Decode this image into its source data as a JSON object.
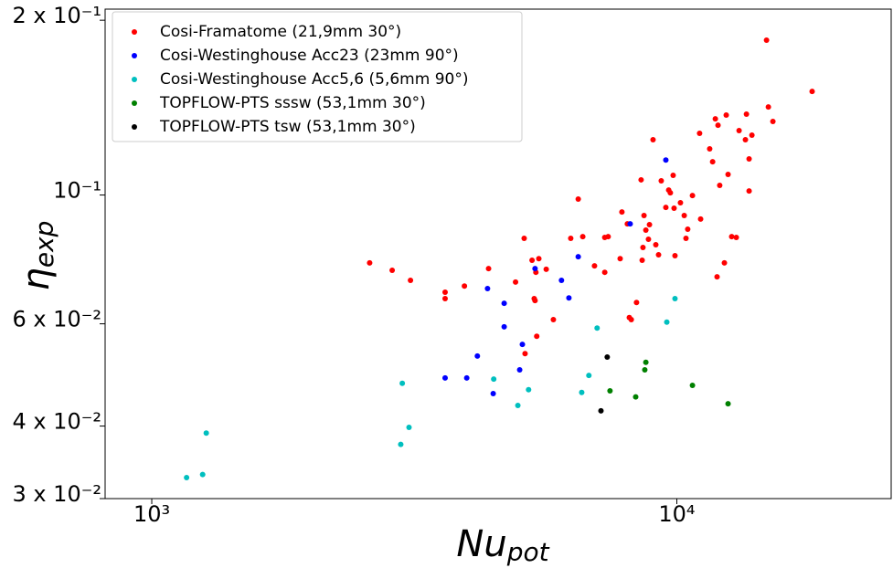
{
  "chart_data": {
    "type": "scatter",
    "xlabel": {
      "text": "Nu",
      "subscript": "pot"
    },
    "ylabel": {
      "text": "η",
      "subscript": "exp"
    },
    "xscale": "log",
    "yscale": "log",
    "xlim": [
      815,
      25600
    ],
    "ylim": [
      0.03,
      0.209
    ],
    "xticks": [
      {
        "value": 1000,
        "label": "10³"
      },
      {
        "value": 10000,
        "label": "10⁴"
      }
    ],
    "yticks": [
      {
        "value": 0.03,
        "label": "3 x 10⁻²"
      },
      {
        "value": 0.04,
        "label": "4 x 10⁻²"
      },
      {
        "value": 0.06,
        "label": "6 x 10⁻²"
      },
      {
        "value": 0.1,
        "label": "10⁻¹"
      },
      {
        "value": 0.2,
        "label": "2 x 10⁻¹"
      }
    ],
    "legend": "upper left",
    "series": [
      {
        "name": "Cosi-Framatome (21,9mm 30°)",
        "color": "#ff0000",
        "x": [
          2600,
          2870,
          3110,
          3620,
          3620,
          3940,
          4380,
          4930,
          5120,
          5300,
          5390,
          5460,
          5350,
          5370,
          5640,
          5140,
          5410,
          5820,
          6280,
          6490,
          6620,
          6970,
          7290,
          7290,
          7400,
          7800,
          7860,
          8050,
          8120,
          8190,
          8380,
          8590,
          8550,
          8660,
          8730,
          8620,
          8830,
          8870,
          9010,
          9120,
          9230,
          9340,
          9530,
          9650,
          9720,
          9840,
          9880,
          9920,
          10160,
          10330,
          10490,
          10410,
          10710,
          11050,
          11100,
          11550,
          11700,
          11840,
          11930,
          11980,
          12070,
          12320,
          12420,
          12520,
          12720,
          12980,
          13140,
          13510,
          13570,
          13730,
          13730,
          13900,
          14820,
          14940,
          15240,
          18100
        ],
        "y": [
          0.0764,
          0.0742,
          0.0713,
          0.068,
          0.0663,
          0.0697,
          0.0747,
          0.0708,
          0.0842,
          0.0772,
          0.0736,
          0.0777,
          0.0663,
          0.0658,
          0.0745,
          0.0533,
          0.0571,
          0.061,
          0.0842,
          0.0984,
          0.0848,
          0.0755,
          0.0736,
          0.0845,
          0.0848,
          0.0777,
          0.0935,
          0.0892,
          0.0615,
          0.061,
          0.0653,
          0.0772,
          0.1062,
          0.0922,
          0.087,
          0.0812,
          0.0839,
          0.0889,
          0.1245,
          0.0821,
          0.0789,
          0.1058,
          0.0952,
          0.102,
          0.1009,
          0.1081,
          0.0949,
          0.0786,
          0.097,
          0.0922,
          0.0873,
          0.0842,
          0.0998,
          0.1277,
          0.0909,
          0.1201,
          0.1141,
          0.1353,
          0.0723,
          0.1319,
          0.1039,
          0.0764,
          0.1373,
          0.1085,
          0.0848,
          0.0845,
          0.1291,
          0.1245,
          0.1378,
          0.1016,
          0.1154,
          0.1268,
          0.1848,
          0.1418,
          0.1339,
          0.1508
        ]
      },
      {
        "name": "Cosi-Westinghouse Acc23 (23mm 90°)",
        "color": "#0000ff",
        "x": [
          3620,
          3980,
          4170,
          4360,
          4470,
          4690,
          4690,
          5020,
          5080,
          5370,
          6030,
          6230,
          6490,
          8150,
          9530
        ],
        "y": [
          0.0484,
          0.0484,
          0.0528,
          0.069,
          0.0455,
          0.0651,
          0.0593,
          0.05,
          0.0553,
          0.0747,
          0.0713,
          0.0665,
          0.0783,
          0.0892,
          0.1149
        ]
      },
      {
        "name": "Cosi-Westinghouse Acc5,6 (5,6mm 90°)",
        "color": "#00bfbf",
        "x": [
          1165,
          1250,
          1270,
          2980,
          3000,
          3090,
          4480,
          4980,
          5220,
          6590,
          6800,
          7050,
          9570,
          9920
        ],
        "y": [
          0.0326,
          0.033,
          0.0389,
          0.0372,
          0.0474,
          0.0398,
          0.0482,
          0.0434,
          0.0462,
          0.0457,
          0.0489,
          0.059,
          0.0604,
          0.0663
        ]
      },
      {
        "name": "TOPFLOW-PTS sssw (53,1mm 30°)",
        "color": "#008000",
        "x": [
          7460,
          8350,
          8730,
          8690,
          10710,
          12520
        ],
        "y": [
          0.046,
          0.0449,
          0.0515,
          0.05,
          0.047,
          0.0437
        ]
      },
      {
        "name": "TOPFLOW-PTS tsw (53,1mm 30°)",
        "color": "#000000",
        "x": [
          7370,
          7170
        ],
        "y": [
          0.0526,
          0.0425
        ]
      }
    ]
  }
}
